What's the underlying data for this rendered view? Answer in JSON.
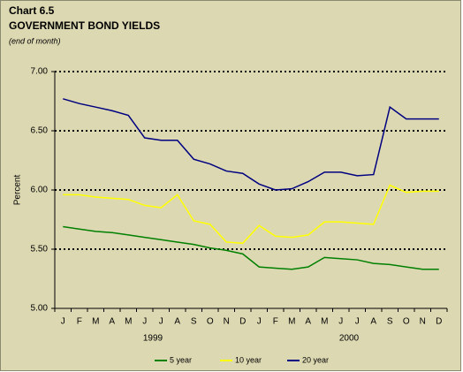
{
  "chart_data": {
    "type": "line",
    "title": "Chart 6.5",
    "subtitle": "GOVERNMENT BOND YIELDS",
    "note": "(end of month)",
    "y_label": "Percent",
    "categories": [
      "J",
      "F",
      "M",
      "A",
      "M",
      "J",
      "J",
      "A",
      "S",
      "O",
      "N",
      "D",
      "J",
      "F",
      "M",
      "A",
      "M",
      "J",
      "J",
      "A",
      "S",
      "O",
      "N",
      "D"
    ],
    "x_groups": [
      "1999",
      "2000"
    ],
    "series": [
      {
        "name": "5 year",
        "color": "#008000",
        "values": [
          5.69,
          5.67,
          5.65,
          5.64,
          5.62,
          5.6,
          5.58,
          5.56,
          5.54,
          5.51,
          5.49,
          5.46,
          5.35,
          5.34,
          5.33,
          5.35,
          5.43,
          5.42,
          5.41,
          5.38,
          5.37,
          5.35,
          5.33,
          5.33
        ]
      },
      {
        "name": "10 year",
        "color": "#ffff00",
        "values": [
          5.96,
          5.96,
          5.94,
          5.93,
          5.92,
          5.87,
          5.85,
          5.96,
          5.74,
          5.71,
          5.56,
          5.55,
          5.7,
          5.61,
          5.6,
          5.62,
          5.73,
          5.73,
          5.72,
          5.71,
          6.04,
          5.98,
          5.99,
          5.99
        ]
      },
      {
        "name": "20 year",
        "color": "#000080",
        "values": [
          6.77,
          6.73,
          6.7,
          6.67,
          6.63,
          6.44,
          6.42,
          6.42,
          6.26,
          6.22,
          6.16,
          6.14,
          6.05,
          6.0,
          6.01,
          6.07,
          6.15,
          6.15,
          6.12,
          6.13,
          6.7,
          6.6,
          6.6,
          6.6
        ]
      }
    ],
    "ylim": [
      5,
      7
    ],
    "yticks": [
      {
        "value": 5,
        "label": "5.00"
      },
      {
        "value": 5.5,
        "label": "5.50"
      },
      {
        "value": 6,
        "label": "6.00"
      },
      {
        "value": 6.5,
        "label": "6.50"
      },
      {
        "value": 7,
        "label": "7.00"
      }
    ],
    "grid": true,
    "legend": "bottom"
  }
}
